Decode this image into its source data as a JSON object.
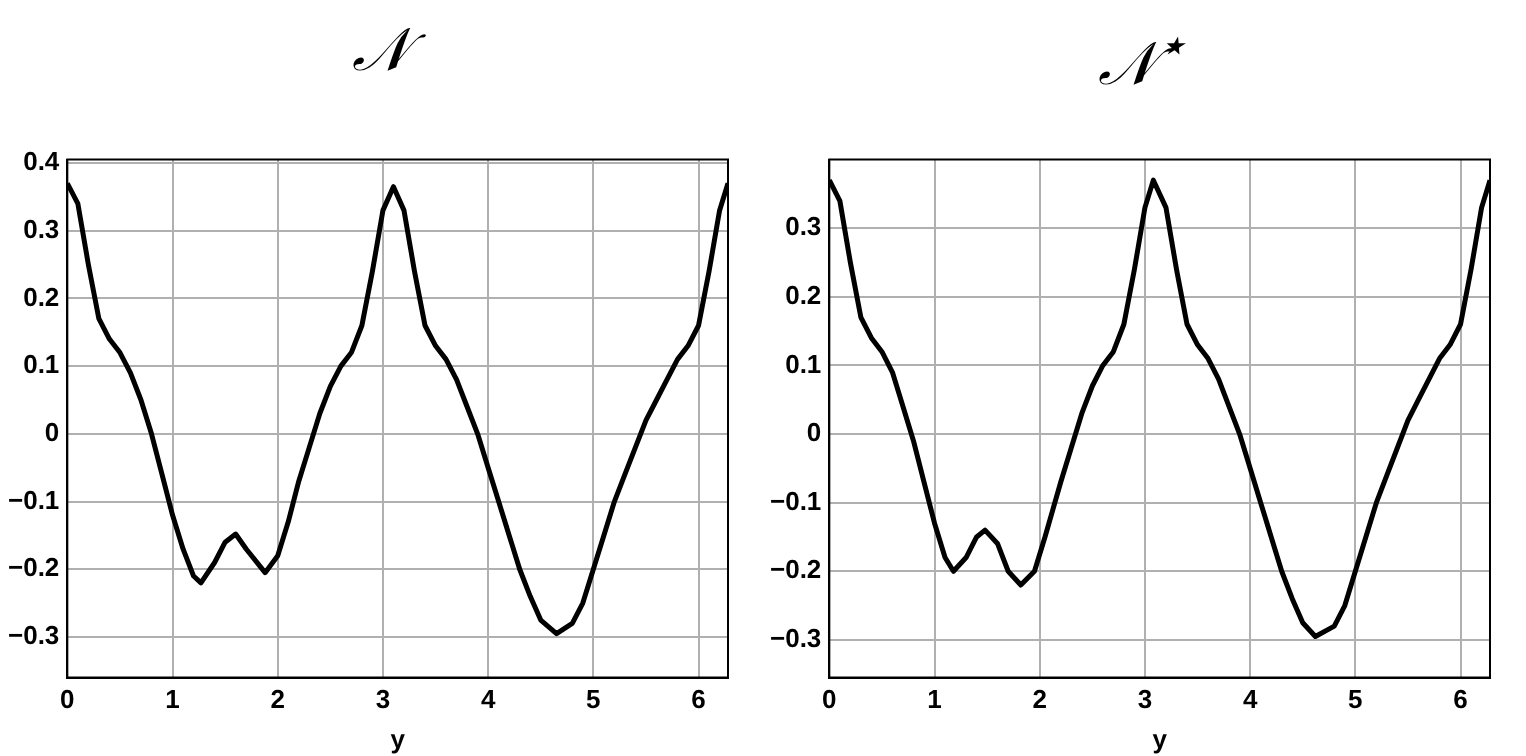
{
  "chart_data": [
    {
      "type": "line",
      "title": "𝒩",
      "xlabel": "y",
      "xlim": [
        0,
        6.28
      ],
      "xticks": [
        0,
        1,
        2,
        3,
        4,
        5,
        6
      ],
      "ylim": [
        -0.36,
        0.405
      ],
      "yticks": [
        -0.3,
        -0.2,
        -0.1,
        0,
        0.1,
        0.2,
        0.3,
        0.4
      ],
      "grid": true,
      "marker": "none",
      "line_style": "solid",
      "x": [
        0,
        0.1,
        0.2,
        0.3,
        0.4,
        0.5,
        0.6,
        0.7,
        0.8,
        0.9,
        1.0,
        1.1,
        1.2,
        1.27,
        1.4,
        1.5,
        1.6,
        1.7,
        1.88,
        2.0,
        2.1,
        2.2,
        2.3,
        2.4,
        2.5,
        2.6,
        2.7,
        2.8,
        2.9,
        3.0,
        3.1,
        3.2,
        3.3,
        3.4,
        3.5,
        3.6,
        3.7,
        3.8,
        3.9,
        4.0,
        4.1,
        4.2,
        4.3,
        4.4,
        4.5,
        4.65,
        4.8,
        4.9,
        5.0,
        5.1,
        5.2,
        5.3,
        5.4,
        5.5,
        5.6,
        5.7,
        5.8,
        5.9,
        6.0,
        6.1,
        6.2,
        6.28
      ],
      "series": [
        {
          "color": "#000000",
          "values": [
            0.37,
            0.34,
            0.25,
            0.17,
            0.14,
            0.12,
            0.09,
            0.05,
            0.0,
            -0.06,
            -0.12,
            -0.17,
            -0.21,
            -0.22,
            -0.19,
            -0.16,
            -0.148,
            -0.17,
            -0.205,
            -0.18,
            -0.13,
            -0.07,
            -0.02,
            0.03,
            0.07,
            0.1,
            0.12,
            0.16,
            0.24,
            0.33,
            0.365,
            0.33,
            0.24,
            0.16,
            0.13,
            0.11,
            0.08,
            0.04,
            0.0,
            -0.05,
            -0.1,
            -0.15,
            -0.2,
            -0.24,
            -0.275,
            -0.295,
            -0.28,
            -0.25,
            -0.2,
            -0.15,
            -0.1,
            -0.06,
            -0.02,
            0.02,
            0.05,
            0.08,
            0.11,
            0.13,
            0.16,
            0.24,
            0.33,
            0.37
          ]
        }
      ]
    },
    {
      "type": "line",
      "title": "𝒩$^{⋆}$",
      "xlabel": "y",
      "xlim": [
        0,
        6.28
      ],
      "xticks": [
        0,
        1,
        2,
        3,
        4,
        5,
        6
      ],
      "ylim": [
        -0.355,
        0.4
      ],
      "yticks": [
        -0.3,
        -0.2,
        -0.1,
        0,
        0.1,
        0.2,
        0.3
      ],
      "grid": true,
      "marker": "none",
      "line_style": "solid",
      "x": [
        0,
        0.1,
        0.2,
        0.3,
        0.4,
        0.5,
        0.6,
        0.7,
        0.8,
        0.9,
        1.0,
        1.1,
        1.18,
        1.3,
        1.4,
        1.48,
        1.6,
        1.7,
        1.82,
        1.95,
        2.05,
        2.2,
        2.3,
        2.4,
        2.5,
        2.6,
        2.7,
        2.8,
        2.9,
        3.0,
        3.08,
        3.2,
        3.3,
        3.4,
        3.5,
        3.6,
        3.7,
        3.8,
        3.9,
        4.0,
        4.1,
        4.2,
        4.3,
        4.4,
        4.5,
        4.62,
        4.8,
        4.9,
        5.0,
        5.1,
        5.2,
        5.3,
        5.4,
        5.5,
        5.6,
        5.7,
        5.8,
        5.9,
        6.0,
        6.1,
        6.2,
        6.28
      ],
      "series": [
        {
          "color": "#000000",
          "values": [
            0.37,
            0.34,
            0.25,
            0.17,
            0.14,
            0.12,
            0.09,
            0.04,
            -0.01,
            -0.07,
            -0.13,
            -0.18,
            -0.2,
            -0.18,
            -0.15,
            -0.14,
            -0.16,
            -0.2,
            -0.22,
            -0.2,
            -0.15,
            -0.07,
            -0.02,
            0.03,
            0.07,
            0.1,
            0.12,
            0.16,
            0.24,
            0.33,
            0.37,
            0.33,
            0.24,
            0.16,
            0.13,
            0.11,
            0.08,
            0.04,
            0.0,
            -0.05,
            -0.1,
            -0.15,
            -0.2,
            -0.24,
            -0.275,
            -0.295,
            -0.28,
            -0.25,
            -0.2,
            -0.15,
            -0.1,
            -0.06,
            -0.02,
            0.02,
            0.05,
            0.08,
            0.11,
            0.13,
            0.16,
            0.24,
            0.33,
            0.37
          ]
        }
      ]
    }
  ]
}
